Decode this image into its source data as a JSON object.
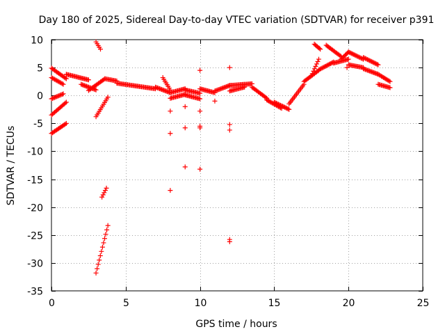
{
  "chart_data": {
    "type": "scatter",
    "title": "Day 180 of 2025, Sidereal Day-to-day VTEC variation (SDTVAR) for receiver p391",
    "xlabel": "GPS time / hours",
    "ylabel": "SDTVAR / TECUs",
    "xlim": [
      0,
      25
    ],
    "ylim": [
      -35,
      10
    ],
    "xticks": [
      0,
      5,
      10,
      15,
      20,
      25
    ],
    "yticks": [
      -35,
      -30,
      -25,
      -20,
      -15,
      -10,
      -5,
      0,
      5,
      10
    ],
    "grid": true,
    "marker": "plus",
    "marker_color": "#ff0000",
    "series": [
      {
        "name": "SDTVAR",
        "segments": [
          {
            "x0": 0.0,
            "x1": 1.0,
            "y0": -6.8,
            "y1": -5.0
          },
          {
            "x0": 0.0,
            "x1": 1.0,
            "y0": -3.5,
            "y1": -1.2
          },
          {
            "x0": 0.0,
            "x1": 0.8,
            "y0": -0.6,
            "y1": 0.3
          },
          {
            "x0": 0.0,
            "x1": 1.0,
            "y0": 4.9,
            "y1": 3.0
          },
          {
            "x0": 0.0,
            "x1": 0.8,
            "y0": 3.2,
            "y1": 2.0
          },
          {
            "x0": 1.0,
            "x1": 2.5,
            "y0": 3.8,
            "y1": 2.8
          },
          {
            "x0": 2.0,
            "x1": 3.0,
            "y0": 2.0,
            "y1": 1.0
          },
          {
            "x0": 3.0,
            "x1": 3.3,
            "y0": 9.6,
            "y1": 8.3
          },
          {
            "x0": 3.0,
            "x1": 3.8,
            "y0": -31.8,
            "y1": -23.3
          },
          {
            "x0": 3.4,
            "x1": 3.7,
            "y0": -18.2,
            "y1": -16.6
          },
          {
            "x0": 3.0,
            "x1": 3.8,
            "y0": -3.8,
            "y1": -0.3
          },
          {
            "x0": 2.5,
            "x1": 3.6,
            "y0": 0.9,
            "y1": 3.0
          },
          {
            "x0": 3.6,
            "x1": 4.4,
            "y0": 3.0,
            "y1": 2.6
          },
          {
            "x0": 4.4,
            "x1": 7.0,
            "y0": 2.2,
            "y1": 1.2
          },
          {
            "x0": 7.0,
            "x1": 8.0,
            "y0": 1.5,
            "y1": 0.5
          },
          {
            "x0": 7.5,
            "x1": 8.0,
            "y0": 3.2,
            "y1": 1.0
          },
          {
            "x0": 8.0,
            "x1": 9.0,
            "y0": 0.5,
            "y1": 1.2
          },
          {
            "x0": 8.0,
            "x1": 9.0,
            "y0": -0.5,
            "y1": 0.2
          },
          {
            "x0": 9.0,
            "x1": 10.0,
            "y0": 1.0,
            "y1": 0.4
          },
          {
            "x0": 9.0,
            "x1": 10.0,
            "y0": 0.1,
            "y1": -0.6
          },
          {
            "x0": 10.0,
            "x1": 11.0,
            "y0": 1.2,
            "y1": 0.5
          },
          {
            "x0": 11.0,
            "x1": 12.0,
            "y0": 0.8,
            "y1": 1.8
          },
          {
            "x0": 12.0,
            "x1": 13.5,
            "y0": 1.8,
            "y1": 2.1
          },
          {
            "x0": 12.0,
            "x1": 13.0,
            "y0": 0.8,
            "y1": 1.5
          },
          {
            "x0": 13.5,
            "x1": 14.5,
            "y0": 1.5,
            "y1": -0.5
          },
          {
            "x0": 14.5,
            "x1": 15.5,
            "y0": -0.8,
            "y1": -2.3
          },
          {
            "x0": 15.0,
            "x1": 16.0,
            "y0": -1.2,
            "y1": -2.5
          },
          {
            "x0": 16.0,
            "x1": 17.0,
            "y0": -1.5,
            "y1": 2.0
          },
          {
            "x0": 17.0,
            "x1": 18.0,
            "y0": 2.5,
            "y1": 4.5
          },
          {
            "x0": 17.5,
            "x1": 18.0,
            "y0": 3.5,
            "y1": 6.5
          },
          {
            "x0": 17.7,
            "x1": 18.1,
            "y0": 9.2,
            "y1": 8.3
          },
          {
            "x0": 18.0,
            "x1": 19.0,
            "y0": 4.6,
            "y1": 6.0
          },
          {
            "x0": 18.5,
            "x1": 19.5,
            "y0": 9.0,
            "y1": 7.0
          },
          {
            "x0": 19.0,
            "x1": 20.0,
            "y0": 5.8,
            "y1": 6.5
          },
          {
            "x0": 19.5,
            "x1": 20.0,
            "y0": 6.5,
            "y1": 7.8
          },
          {
            "x0": 20.0,
            "x1": 21.0,
            "y0": 7.8,
            "y1": 6.5
          },
          {
            "x0": 20.0,
            "x1": 21.0,
            "y0": 5.5,
            "y1": 5.0
          },
          {
            "x0": 21.0,
            "x1": 22.0,
            "y0": 6.8,
            "y1": 5.5
          },
          {
            "x0": 21.0,
            "x1": 22.0,
            "y0": 4.8,
            "y1": 3.8
          },
          {
            "x0": 22.0,
            "x1": 22.8,
            "y0": 3.8,
            "y1": 2.5
          },
          {
            "x0": 22.0,
            "x1": 22.8,
            "y0": 2.0,
            "y1": 1.4
          }
        ],
        "isolated_points": [
          {
            "x": 8.0,
            "y": -2.8
          },
          {
            "x": 8.0,
            "y": -6.8
          },
          {
            "x": 8.0,
            "y": -17.0
          },
          {
            "x": 9.0,
            "y": -2.0
          },
          {
            "x": 9.0,
            "y": -5.8
          },
          {
            "x": 9.0,
            "y": -12.8
          },
          {
            "x": 10.0,
            "y": 4.5
          },
          {
            "x": 10.0,
            "y": -2.8
          },
          {
            "x": 10.0,
            "y": -5.5
          },
          {
            "x": 10.0,
            "y": -5.8
          },
          {
            "x": 10.0,
            "y": -13.2
          },
          {
            "x": 11.0,
            "y": -1.0
          },
          {
            "x": 12.0,
            "y": 5.0
          },
          {
            "x": 12.0,
            "y": -5.2
          },
          {
            "x": 12.0,
            "y": -6.2
          },
          {
            "x": 12.0,
            "y": -25.8
          },
          {
            "x": 12.0,
            "y": -26.2
          },
          {
            "x": 19.9,
            "y": 5.0
          }
        ]
      }
    ]
  }
}
